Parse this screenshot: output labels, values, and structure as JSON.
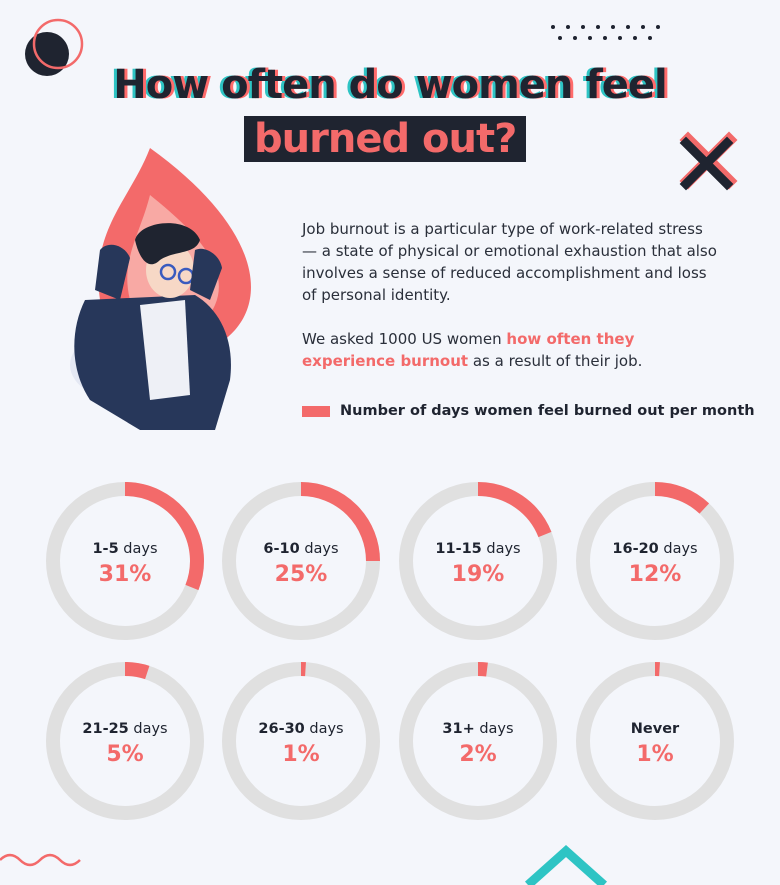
{
  "title": {
    "line1": "How often do women feel",
    "line2": "burned out?"
  },
  "intro": {
    "p1": "Job burnout is a particular type of work-related stress — a state of physical or emotional exhaustion that also involves a sense of reduced accomplishment and loss of personal identity.",
    "p2_pre": "We asked 1000 US women ",
    "p2_highlight": "how often they experience burnout",
    "p2_post": " as a result of their job."
  },
  "legend": {
    "label": "Number of days women feel burned out per month",
    "color": "#f36a6a"
  },
  "colors": {
    "accent": "#f36a6a",
    "track": "#e0e0e0",
    "dark": "#1f2430",
    "teal": "#2ec4c4",
    "background": "#f4f6fb"
  },
  "icons": [
    "circle-decor-icon",
    "dots-decor-icon",
    "x-decor-icon",
    "woman-flame-illustration",
    "wave-decor-icon",
    "triangle-decor-icon"
  ],
  "chart_data": {
    "type": "pie",
    "style": "donut",
    "categories": [
      "1-5",
      "6-10",
      "11-15",
      "16-20",
      "21-25",
      "26-30",
      "31+",
      "Never"
    ],
    "category_bold": [
      "1-5",
      "6-10",
      "11-15",
      "16-20",
      "21-25",
      "26-30",
      "31+",
      "Never"
    ],
    "category_suffix": [
      " days",
      " days",
      " days",
      " days",
      " days",
      " days",
      " days",
      ""
    ],
    "values": [
      31,
      25,
      19,
      12,
      5,
      1,
      2,
      1
    ],
    "value_labels": [
      "31%",
      "25%",
      "19%",
      "12%",
      "5%",
      "1%",
      "2%",
      "1%"
    ],
    "series": [
      {
        "name": "Number of days women feel burned out per month",
        "values": [
          31,
          25,
          19,
          12,
          5,
          1,
          2,
          1
        ]
      }
    ]
  }
}
